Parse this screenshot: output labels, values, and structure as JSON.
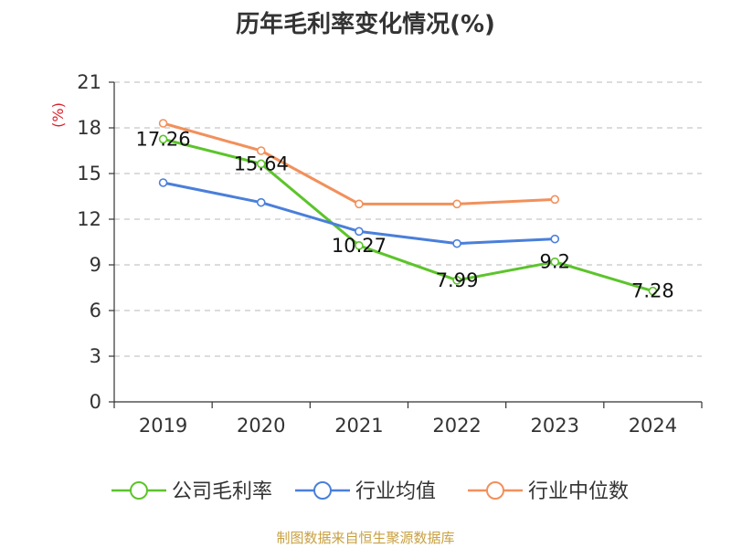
{
  "chart_data": {
    "type": "line",
    "title": "历年毛利率变化情况(%)",
    "ylabel": "(%)",
    "categories": [
      "2019",
      "2020",
      "2021",
      "2022",
      "2023",
      "2024"
    ],
    "ylim": [
      0,
      21
    ],
    "yticks": [
      0,
      3,
      6,
      9,
      12,
      15,
      18,
      21
    ],
    "grid": true,
    "legend_position": "bottom",
    "series": [
      {
        "name": "公司毛利率",
        "color": "#5cc42b",
        "values": [
          17.26,
          15.64,
          10.27,
          7.99,
          9.2,
          7.28
        ],
        "labels": [
          "17.26",
          "15.64",
          "10.27",
          "7.99",
          "9.2",
          "7.28"
        ],
        "show_labels": true
      },
      {
        "name": "行业均值",
        "color": "#4a7fda",
        "values": [
          14.4,
          13.1,
          11.2,
          10.4,
          10.7,
          null
        ],
        "show_labels": false
      },
      {
        "name": "行业中位数",
        "color": "#f2905b",
        "values": [
          18.3,
          16.5,
          13.0,
          13.0,
          13.3,
          null
        ],
        "show_labels": false
      }
    ],
    "colors": {
      "axis": "#333333",
      "grid": "#c8c8c8",
      "unit": "#d9232b"
    }
  },
  "footer": {
    "source": "制图数据来自恒生聚源数据库"
  }
}
